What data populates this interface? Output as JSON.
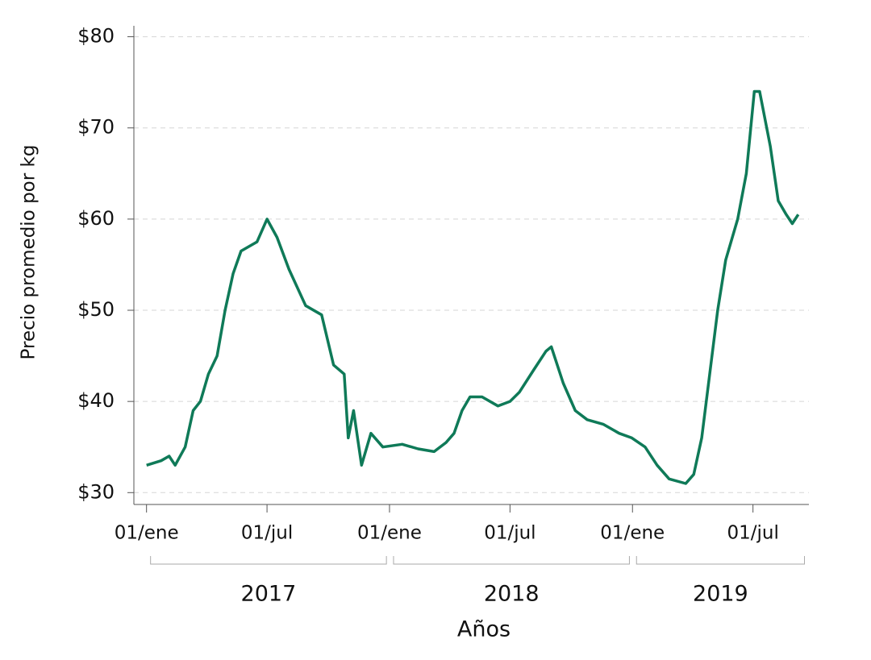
{
  "chart_data": {
    "type": "line",
    "xlabel": "Años",
    "ylabel": "Precio promedio por kg",
    "x": [
      "2017-01-01",
      "2017-01-23",
      "2017-02-04",
      "2017-02-13",
      "2017-02-28",
      "2017-03-12",
      "2017-03-23",
      "2017-04-04",
      "2017-04-17",
      "2017-04-29",
      "2017-05-11",
      "2017-05-23",
      "2017-06-16",
      "2017-07-01",
      "2017-07-16",
      "2017-08-03",
      "2017-08-28",
      "2017-09-21",
      "2017-10-09",
      "2017-10-25",
      "2017-10-31",
      "2017-11-08",
      "2017-11-20",
      "2017-12-04",
      "2017-12-22",
      "2018-01-20",
      "2018-02-13",
      "2018-03-09",
      "2018-03-27",
      "2018-04-08",
      "2018-04-20",
      "2018-05-02",
      "2018-05-20",
      "2018-06-13",
      "2018-07-01",
      "2018-07-15",
      "2018-08-06",
      "2018-08-24",
      "2018-09-01",
      "2018-09-19",
      "2018-10-07",
      "2018-10-25",
      "2018-11-18",
      "2018-12-12",
      "2018-12-31",
      "2019-01-20",
      "2019-02-07",
      "2019-02-25",
      "2019-03-22",
      "2019-04-03",
      "2019-04-15",
      "2019-04-27",
      "2019-05-09",
      "2019-05-21",
      "2019-06-08",
      "2019-06-21",
      "2019-07-03",
      "2019-07-11",
      "2019-07-27",
      "2019-08-08",
      "2019-08-20",
      "2019-08-29",
      "2019-09-07"
    ],
    "series": [
      {
        "name": "Precio promedio por kg",
        "color": "#0f7a58",
        "values": [
          33,
          33.5,
          34,
          33,
          35,
          39,
          40,
          43,
          45,
          50,
          54,
          56.5,
          57.5,
          60,
          58,
          54.5,
          50.5,
          49.5,
          44,
          43,
          36,
          39,
          33,
          36.5,
          35,
          35.3,
          34.8,
          34.5,
          35.5,
          36.5,
          39,
          40.5,
          40.5,
          39.5,
          40,
          41,
          43.5,
          45.5,
          46,
          42,
          39,
          38,
          37.5,
          36.5,
          36,
          35,
          33,
          31.5,
          31,
          32,
          36,
          43,
          50,
          55.5,
          60,
          65,
          74,
          74,
          68,
          62,
          60.5,
          59.5,
          60.5
        ]
      }
    ],
    "xlim": [
      "2016-12-13",
      "2019-09-23"
    ],
    "xticks": [
      {
        "value": "2017-01-01",
        "label": "01/ene"
      },
      {
        "value": "2017-07-01",
        "label": "01/jul"
      },
      {
        "value": "2018-01-01",
        "label": "01/ene"
      },
      {
        "value": "2018-07-01",
        "label": "01/jul"
      },
      {
        "value": "2019-01-01",
        "label": "01/ene"
      },
      {
        "value": "2019-07-01",
        "label": "01/jul"
      }
    ],
    "x_groups": [
      {
        "label": "2017",
        "start": "2017-01-01",
        "end": "2017-12-31"
      },
      {
        "label": "2018",
        "start": "2018-01-01",
        "end": "2018-12-31"
      },
      {
        "label": "2019",
        "start": "2019-01-01",
        "end": "2019-09-20"
      }
    ],
    "ylim": [
      28.7,
      81.2
    ],
    "yticks": [
      {
        "value": 30,
        "label": "$30"
      },
      {
        "value": 40,
        "label": "$40"
      },
      {
        "value": 50,
        "label": "$50"
      },
      {
        "value": 60,
        "label": "$60"
      },
      {
        "value": 70,
        "label": "$70"
      },
      {
        "value": 80,
        "label": "$80"
      }
    ],
    "grid": true
  }
}
